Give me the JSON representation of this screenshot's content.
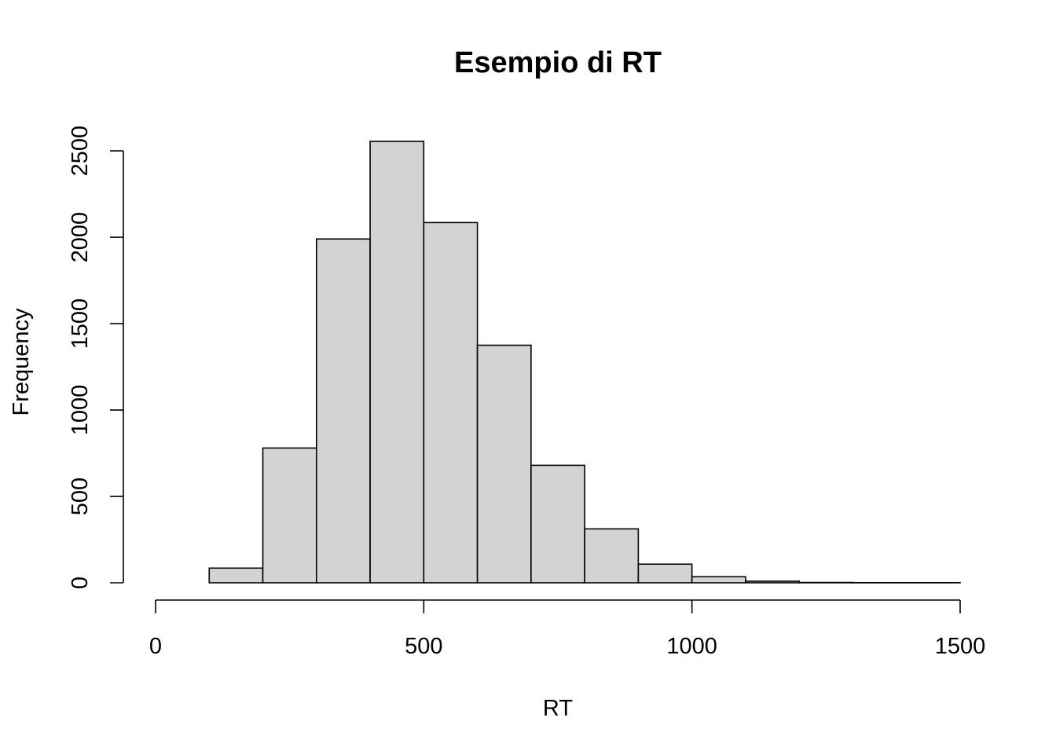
{
  "chart_data": {
    "type": "bar",
    "title": "Esempio di RT",
    "xlabel": "RT",
    "ylabel": "Frequency",
    "bin_edges": [
      0,
      100,
      200,
      300,
      400,
      500,
      600,
      700,
      800,
      900,
      1000,
      1100,
      1200,
      1300,
      1400,
      1500
    ],
    "values": [
      0,
      85,
      780,
      1990,
      2555,
      2085,
      1375,
      680,
      312,
      108,
      35,
      9,
      2,
      1,
      1
    ],
    "xlim": [
      0,
      1500
    ],
    "ylim": [
      0,
      2555
    ],
    "x_ticks": [
      0,
      500,
      1000,
      1500
    ],
    "y_ticks": [
      0,
      500,
      1000,
      1500,
      2000,
      2500
    ],
    "bar_color": "#d3d3d3",
    "grid": false,
    "legend": "none"
  }
}
